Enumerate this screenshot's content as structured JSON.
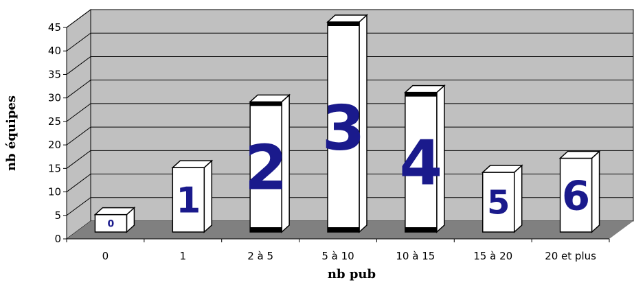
{
  "chart_data": {
    "type": "bar",
    "style": "3d-columns",
    "categories": [
      "0",
      "1",
      "2 à 5",
      "5 à 10",
      "10 à 15",
      "15 à 20",
      "20 et plus"
    ],
    "values": [
      4,
      14,
      28,
      45,
      30,
      13,
      16
    ],
    "bar_labels": [
      "0",
      "1",
      "2",
      "3",
      "4",
      "5",
      "6"
    ],
    "xlabel": "nb pub",
    "ylabel": "nb équipes",
    "ylim": [
      0,
      45
    ],
    "yticks": [
      0,
      5,
      10,
      15,
      20,
      25,
      30,
      35,
      40,
      45
    ],
    "grid": true,
    "legend": "none",
    "colors": {
      "wall": "#c0c0c0",
      "floor": "#808080",
      "bar_face": "#ffffff",
      "bar_outline": "#000000",
      "label_text": "#1a1a8c"
    }
  }
}
